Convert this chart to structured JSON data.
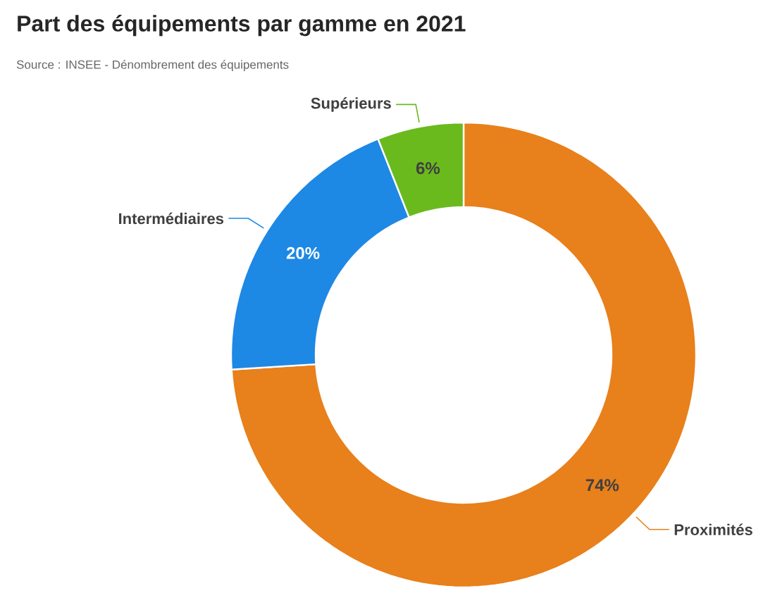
{
  "chart_data": {
    "type": "donut",
    "title": "Part des équipements par gamme en 2021",
    "annotations": [
      "Source : INSEE - Dénombrement des équipements"
    ],
    "categories": [
      "Proximités",
      "Intermédiaires",
      "Supérieurs"
    ],
    "values": [
      74,
      20,
      6
    ],
    "colors": [
      "#e8801b",
      "#1e88e5",
      "#6aba1e"
    ],
    "value_labels": [
      "74%",
      "20%",
      "6%"
    ]
  }
}
